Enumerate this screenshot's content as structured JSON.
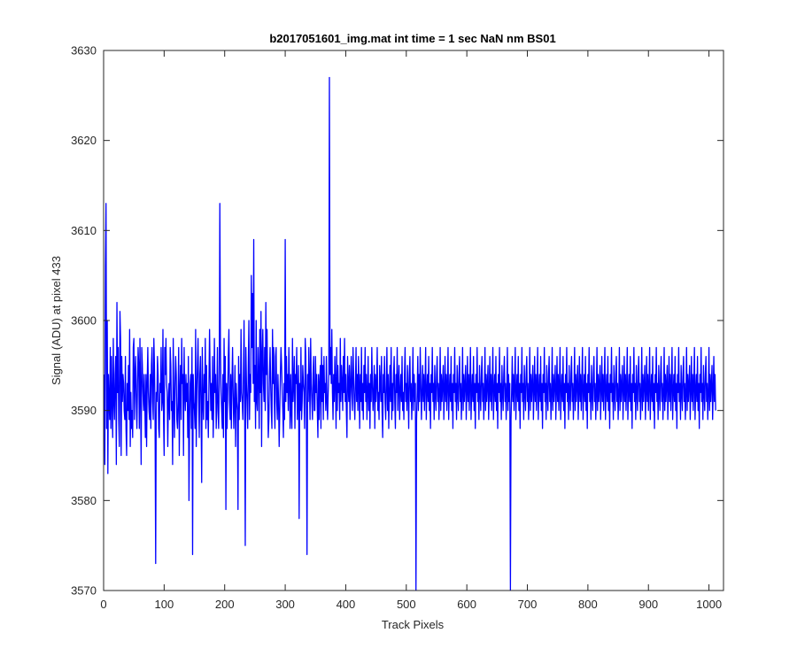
{
  "chart_data": {
    "type": "line",
    "title": "b2017051601_img.mat int time = 1 sec  NaN nm BS01",
    "xlabel": "Track Pixels",
    "ylabel": "Signal (ADU) at pixel 433",
    "xlim": [
      0,
      1024
    ],
    "ylim": [
      3570,
      3630
    ],
    "xticks": [
      0,
      100,
      200,
      300,
      400,
      500,
      600,
      700,
      800,
      900,
      1000
    ],
    "yticks": [
      3570,
      3580,
      3590,
      3600,
      3610,
      3620,
      3630
    ],
    "grid": false,
    "legend": "none",
    "colors": {
      "line": "#0000ff",
      "axes": "#262626",
      "background": "#ffffff"
    },
    "series": [
      {
        "x_start": 1,
        "x_step": 1,
        "values": [
          3594,
          3584,
          3606,
          3613,
          3588,
          3600,
          3583,
          3594,
          3591,
          3589,
          3597,
          3588,
          3596,
          3591,
          3587,
          3598,
          3591,
          3589,
          3594,
          3596,
          3584,
          3602,
          3592,
          3597,
          3589,
          3586,
          3601,
          3598,
          3585,
          3596,
          3591,
          3594,
          3593,
          3590,
          3589,
          3596,
          3588,
          3585,
          3593,
          3590,
          3595,
          3589,
          3599,
          3586,
          3592,
          3588,
          3590,
          3587,
          3597,
          3598,
          3589,
          3594,
          3596,
          3591,
          3588,
          3593,
          3597,
          3595,
          3588,
          3598,
          3592,
          3584,
          3597,
          3595,
          3592,
          3590,
          3594,
          3591,
          3587,
          3594,
          3586,
          3593,
          3597,
          3592,
          3590,
          3589,
          3594,
          3588,
          3595,
          3597,
          3591,
          3589,
          3598,
          3595,
          3589,
          3573,
          3592,
          3591,
          3596,
          3594,
          3588,
          3587,
          3593,
          3592,
          3597,
          3590,
          3591,
          3599,
          3589,
          3585,
          3597,
          3594,
          3598,
          3593,
          3592,
          3586,
          3591,
          3593,
          3589,
          3597,
          3595,
          3590,
          3591,
          3584,
          3598,
          3591,
          3587,
          3593,
          3596,
          3594,
          3589,
          3588,
          3591,
          3597,
          3585,
          3592,
          3595,
          3589,
          3598,
          3593,
          3594,
          3585,
          3597,
          3592,
          3590,
          3594,
          3591,
          3593,
          3587,
          3596,
          3580,
          3589,
          3593,
          3594,
          3588,
          3597,
          3574,
          3594,
          3591,
          3590,
          3588,
          3599,
          3586,
          3592,
          3595,
          3598,
          3591,
          3587,
          3594,
          3596,
          3590,
          3582,
          3597,
          3591,
          3589,
          3594,
          3592,
          3598,
          3588,
          3595,
          3589,
          3591,
          3587,
          3593,
          3599,
          3594,
          3590,
          3593,
          3589,
          3596,
          3587,
          3591,
          3598,
          3592,
          3594,
          3588,
          3591,
          3597,
          3590,
          3588,
          3593,
          3613,
          3597,
          3592,
          3590,
          3588,
          3594,
          3587,
          3598,
          3591,
          3596,
          3579,
          3593,
          3588,
          3592,
          3596,
          3599,
          3591,
          3589,
          3594,
          3588,
          3593,
          3597,
          3592,
          3588,
          3591,
          3595,
          3586,
          3593,
          3591,
          3590,
          3579,
          3596,
          3589,
          3594,
          3591,
          3599,
          3592,
          3591,
          3589,
          3594,
          3600,
          3591,
          3575,
          3597,
          3593,
          3591,
          3588,
          3595,
          3600,
          3589,
          3594,
          3592,
          3605,
          3597,
          3603,
          3593,
          3609,
          3591,
          3595,
          3588,
          3600,
          3591,
          3590,
          3597,
          3594,
          3588,
          3599,
          3592,
          3601,
          3586,
          3596,
          3599,
          3593,
          3591,
          3597,
          3590,
          3602,
          3594,
          3599,
          3592,
          3587,
          3589,
          3594,
          3597,
          3593,
          3590,
          3588,
          3599,
          3593,
          3597,
          3591,
          3588,
          3596,
          3597,
          3591,
          3589,
          3594,
          3591,
          3586,
          3590,
          3594,
          3597,
          3595,
          3592,
          3590,
          3587,
          3593,
          3589,
          3609,
          3591,
          3596,
          3592,
          3594,
          3590,
          3597,
          3593,
          3588,
          3594,
          3590,
          3588,
          3598,
          3591,
          3593,
          3596,
          3588,
          3594,
          3593,
          3597,
          3589,
          3592,
          3595,
          3578,
          3593,
          3590,
          3597,
          3589,
          3591,
          3595,
          3593,
          3592,
          3588,
          3598,
          3596,
          3590,
          3574,
          3594,
          3591,
          3597,
          3593,
          3589,
          3598,
          3593,
          3591,
          3589,
          3594,
          3596,
          3590,
          3590,
          3596,
          3592,
          3594,
          3590,
          3587,
          3594,
          3589,
          3593,
          3595,
          3588,
          3597,
          3591,
          3595,
          3589,
          3596,
          3592,
          3593,
          3590,
          3596,
          3591,
          3589,
          3592,
          3594,
          3627,
          3594,
          3597,
          3593,
          3599,
          3592,
          3589,
          3594,
          3591,
          3596,
          3593,
          3588,
          3597,
          3590,
          3595,
          3592,
          3593,
          3589,
          3598,
          3591,
          3595,
          3593,
          3590,
          3596,
          3592,
          3598,
          3591,
          3594,
          3590,
          3587,
          3596,
          3593,
          3591,
          3595,
          3589,
          3593,
          3596,
          3592,
          3590,
          3597,
          3594,
          3591,
          3589,
          3593,
          3597,
          3591,
          3594,
          3590,
          3596,
          3593,
          3588,
          3594,
          3591,
          3597,
          3590,
          3593,
          3589,
          3595,
          3592,
          3597,
          3591,
          3594,
          3589,
          3592,
          3596,
          3590,
          3593,
          3588,
          3594,
          3591,
          3597,
          3593,
          3590,
          3592,
          3595,
          3588,
          3594,
          3591,
          3593,
          3597,
          3590,
          3592,
          3589,
          3595,
          3593,
          3591,
          3596,
          3590,
          3587,
          3594,
          3592,
          3596,
          3591,
          3589,
          3593,
          3597,
          3590,
          3594,
          3588,
          3592,
          3595,
          3591,
          3597,
          3589,
          3593,
          3590,
          3594,
          3596,
          3591,
          3588,
          3594,
          3592,
          3597,
          3590,
          3593,
          3595,
          3589,
          3592,
          3594,
          3591,
          3596,
          3590,
          3592,
          3589,
          3594,
          3597,
          3591,
          3593,
          3590,
          3595,
          3592,
          3588,
          3594,
          3596,
          3591,
          3593,
          3589,
          3592,
          3597,
          3590,
          3594,
          3591,
          3593,
          3570,
          3589,
          3592,
          3596,
          3590,
          3594,
          3591,
          3597,
          3593,
          3589,
          3592,
          3595,
          3591,
          3594,
          3590,
          3593,
          3597,
          3589,
          3592,
          3594,
          3591,
          3596,
          3590,
          3593,
          3588,
          3594,
          3592,
          3597,
          3591,
          3593,
          3589,
          3595,
          3592,
          3590,
          3594,
          3596,
          3591,
          3593,
          3589,
          3592,
          3597,
          3590,
          3594,
          3591,
          3593,
          3595,
          3589,
          3592,
          3596,
          3591,
          3594,
          3590,
          3593,
          3597,
          3589,
          3592,
          3594,
          3591,
          3596,
          3590,
          3593,
          3588,
          3594,
          3592,
          3597,
          3591,
          3593,
          3589,
          3595,
          3592,
          3590,
          3594,
          3596,
          3591,
          3593,
          3589,
          3592,
          3597,
          3590,
          3594,
          3591,
          3593,
          3595,
          3589,
          3592,
          3596,
          3591,
          3594,
          3590,
          3593,
          3597,
          3589,
          3592,
          3594,
          3591,
          3596,
          3590,
          3593,
          3588,
          3594,
          3592,
          3597,
          3591,
          3593,
          3589,
          3595,
          3592,
          3590,
          3594,
          3596,
          3591,
          3593,
          3589,
          3592,
          3597,
          3590,
          3594,
          3591,
          3593,
          3595,
          3589,
          3592,
          3596,
          3591,
          3594,
          3590,
          3593,
          3597,
          3589,
          3592,
          3594,
          3591,
          3596,
          3590,
          3593,
          3588,
          3594,
          3592,
          3597,
          3591,
          3593,
          3589,
          3595,
          3592,
          3590,
          3594,
          3596,
          3591,
          3593,
          3589,
          3592,
          3597,
          3590,
          3594,
          3591,
          3593,
          3570,
          3589,
          3592,
          3596,
          3591,
          3594,
          3590,
          3593,
          3597,
          3589,
          3592,
          3594,
          3591,
          3596,
          3590,
          3593,
          3588,
          3594,
          3592,
          3597,
          3591,
          3593,
          3589,
          3595,
          3592,
          3590,
          3594,
          3596,
          3591,
          3593,
          3589,
          3592,
          3597,
          3590,
          3594,
          3591,
          3593,
          3595,
          3589,
          3592,
          3596,
          3591,
          3594,
          3590,
          3593,
          3597,
          3589,
          3592,
          3594,
          3591,
          3596,
          3590,
          3593,
          3588,
          3594,
          3592,
          3597,
          3591,
          3593,
          3589,
          3595,
          3592,
          3590,
          3594,
          3596,
          3591,
          3593,
          3589,
          3592,
          3597,
          3590,
          3594,
          3591,
          3593,
          3595,
          3589,
          3592,
          3596,
          3591,
          3594,
          3590,
          3593,
          3597,
          3589,
          3592,
          3594,
          3591,
          3596,
          3590,
          3593,
          3588,
          3594,
          3592,
          3597,
          3591,
          3593,
          3589,
          3595,
          3592,
          3590,
          3594,
          3596,
          3591,
          3593,
          3589,
          3592,
          3597,
          3590,
          3594,
          3591,
          3593,
          3595,
          3589,
          3592,
          3596,
          3591,
          3594,
          3590,
          3593,
          3597,
          3589,
          3592,
          3594,
          3591,
          3596,
          3590,
          3593,
          3588,
          3594,
          3592,
          3597,
          3591,
          3593,
          3589,
          3595,
          3592,
          3590,
          3594,
          3596,
          3591,
          3593,
          3589,
          3592,
          3597,
          3590,
          3594,
          3591,
          3593,
          3595,
          3589,
          3592,
          3596,
          3591,
          3594,
          3590,
          3593,
          3597,
          3589,
          3592,
          3594,
          3591,
          3596,
          3590,
          3593,
          3588,
          3594,
          3592,
          3597,
          3591,
          3593,
          3589,
          3595,
          3592,
          3590,
          3594,
          3596,
          3591,
          3593,
          3589,
          3592,
          3597,
          3590,
          3594,
          3591,
          3593,
          3595,
          3589,
          3592,
          3596,
          3591,
          3594,
          3590,
          3593,
          3597,
          3589,
          3592,
          3594,
          3591,
          3596,
          3590,
          3593,
          3588,
          3594,
          3592,
          3597,
          3591,
          3593,
          3589,
          3595,
          3592,
          3590,
          3594,
          3596,
          3591,
          3593,
          3589,
          3592,
          3597,
          3590,
          3594,
          3591,
          3593,
          3595,
          3589,
          3592,
          3596,
          3591,
          3594,
          3590,
          3593,
          3597,
          3589,
          3592,
          3594,
          3591,
          3596,
          3590,
          3593,
          3588,
          3594,
          3592,
          3597,
          3591,
          3593,
          3589,
          3595,
          3592,
          3590,
          3594,
          3596,
          3591,
          3593,
          3589,
          3592,
          3597,
          3590,
          3594,
          3591,
          3593,
          3595,
          3589,
          3592,
          3596,
          3591,
          3594,
          3590,
          3593,
          3597,
          3589,
          3592,
          3594,
          3591,
          3596,
          3590,
          3593,
          3588,
          3594,
          3592,
          3597,
          3591,
          3593,
          3589,
          3595,
          3592,
          3590,
          3594,
          3596,
          3591,
          3593,
          3589,
          3592,
          3597,
          3590,
          3594,
          3591,
          3593,
          3595,
          3589,
          3592,
          3596,
          3591,
          3594,
          3590,
          3593,
          3597,
          3589,
          3592,
          3594,
          3591,
          3596,
          3590,
          3593,
          3588,
          3594,
          3592,
          3597,
          3591,
          3593,
          3589,
          3595,
          3592,
          3590,
          3594,
          3596,
          3591,
          3593,
          3589,
          3592,
          3597,
          3590,
          3594,
          3591,
          3593,
          3595,
          3589,
          3592,
          3596,
          3591,
          3594,
          3590
        ]
      }
    ]
  }
}
